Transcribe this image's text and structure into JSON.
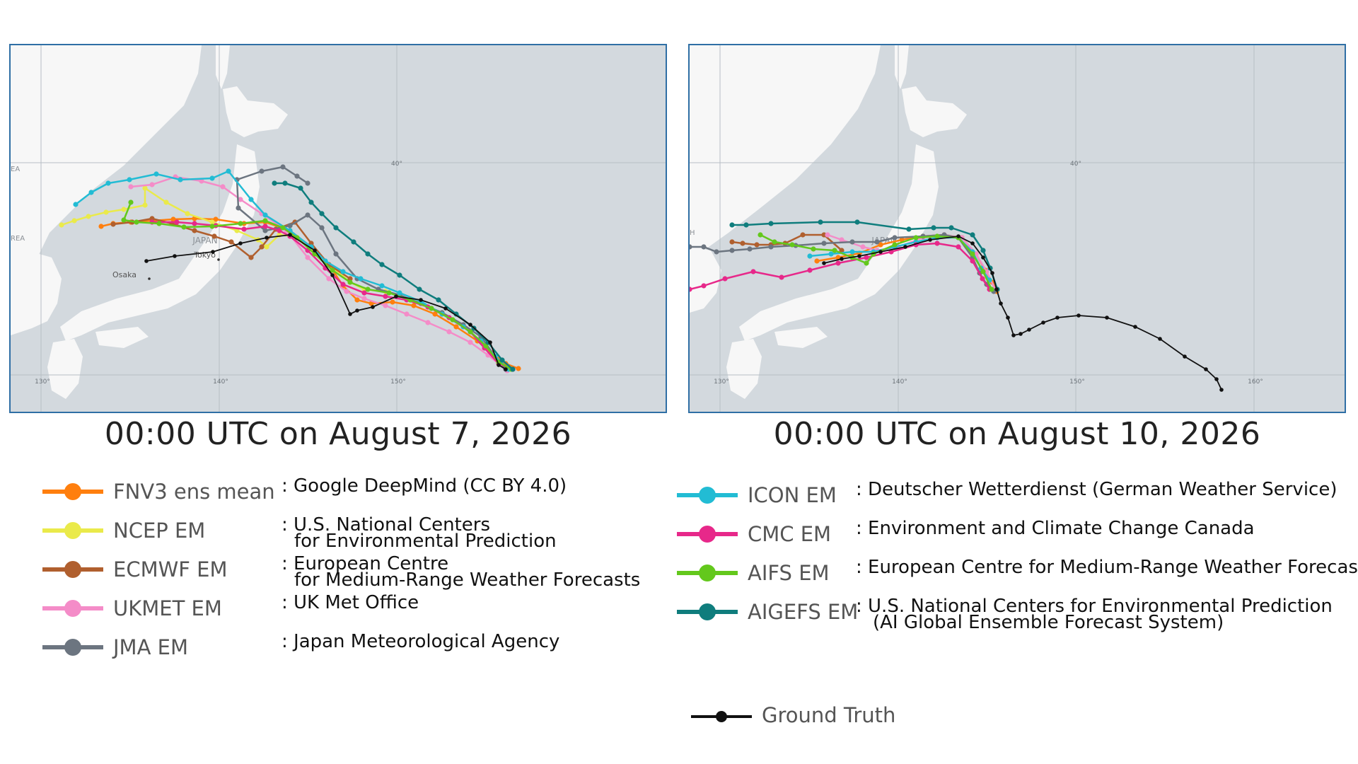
{
  "colors": {
    "ocean": "#d3d9de",
    "land": "#f7f7f7",
    "grid": "#b7bec4",
    "border": "#2f6fa5",
    "truth": "#111111"
  },
  "maps": [
    {
      "id": "left",
      "title": "00:00 UTC on August 7, 2026",
      "country_label": "JAPAN",
      "city_labels": [
        "Tokyo",
        "Osaka"
      ],
      "edge_labels": [
        "REA",
        "EA"
      ],
      "lon_ticks": [
        "130°",
        "140°",
        "150°"
      ],
      "lat_ticks": [
        "40°"
      ]
    },
    {
      "id": "right",
      "title": "00:00 UTC on August 10, 2026",
      "country_label": "JAPAN",
      "edge_labels": [
        "H"
      ],
      "lon_ticks": [
        "130°",
        "140°",
        "150°",
        "160°"
      ],
      "lat_ticks": [
        "40°"
      ]
    }
  ],
  "legend": [
    {
      "name": "FNV3 ens mean",
      "color": "#ff7f0e",
      "desc": [
        "Google DeepMind (CC BY 4.0)"
      ]
    },
    {
      "name": "NCEP EM",
      "color": "#eaea4a",
      "desc": [
        "U.S. National Centers",
        "for Environmental Prediction"
      ]
    },
    {
      "name": "ECMWF EM",
      "color": "#b05f2e",
      "desc": [
        "European Centre",
        "for Medium-Range Weather Forecasts"
      ]
    },
    {
      "name": "UKMET EM",
      "color": "#f48cc8",
      "desc": [
        "UK Met Office"
      ]
    },
    {
      "name": "JMA EM",
      "color": "#6c7580",
      "desc": [
        "Japan Meteorological Agency"
      ]
    },
    {
      "name": "ICON EM",
      "color": "#22bcd4",
      "desc": [
        "Deutscher Wetterdienst (German Weather Service)"
      ]
    },
    {
      "name": "CMC EM",
      "color": "#e7288a",
      "desc": [
        "Environment and Climate Change Canada"
      ]
    },
    {
      "name": "AIFS EM",
      "color": "#63c81c",
      "desc": [
        "European Centre for Medium-Range Weather Forecasts"
      ]
    },
    {
      "name": "AIGEFS EM",
      "color": "#0f7d7d",
      "desc": [
        "U.S. National Centers for Environmental Prediction",
        "(AI Global Ensemble Forecast System)"
      ]
    }
  ],
  "truth_legend": {
    "name": "Ground Truth",
    "color": "#111111"
  },
  "desc_separator": ":"
}
